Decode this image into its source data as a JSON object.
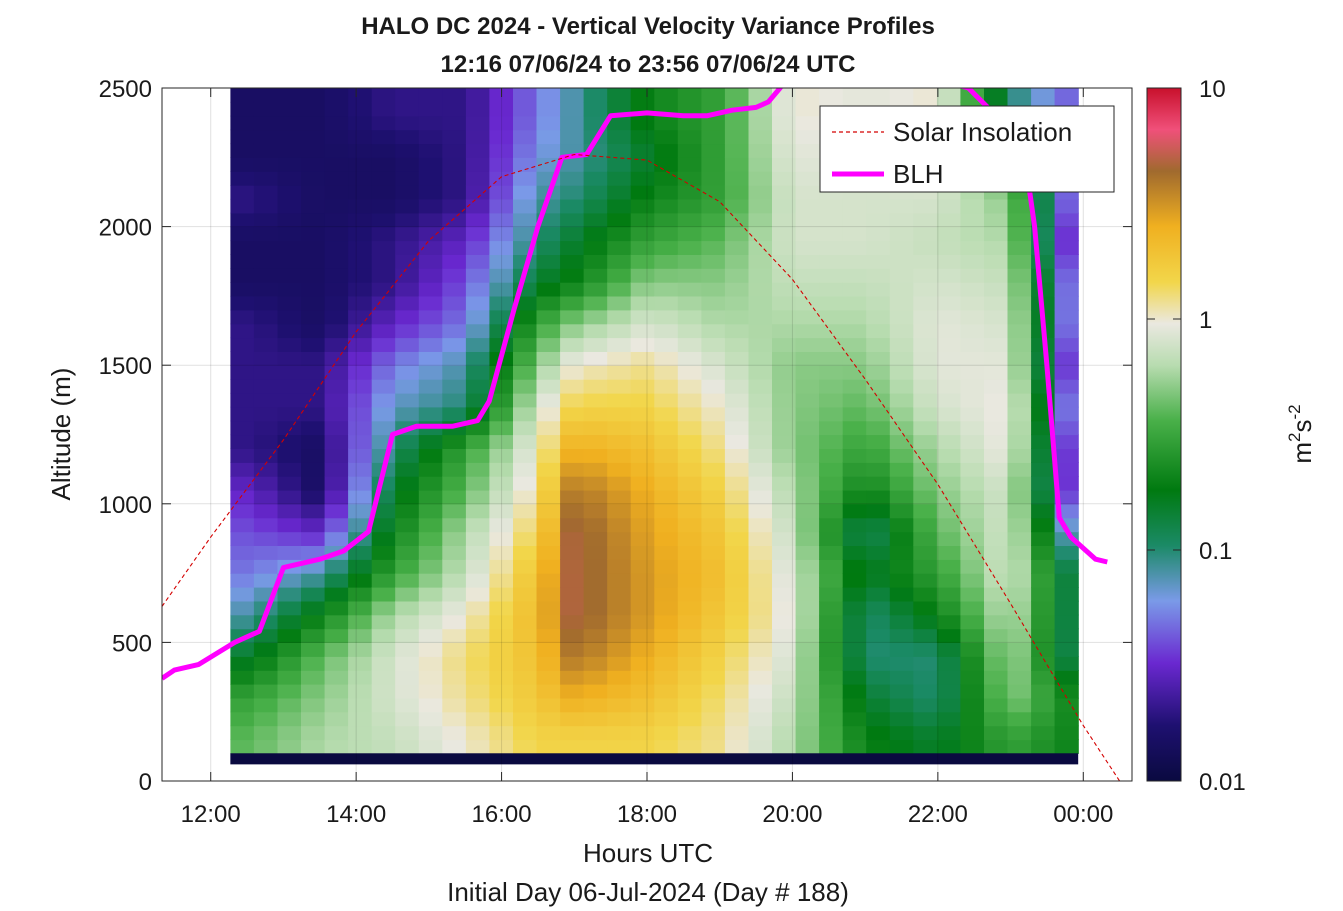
{
  "chart_data": {
    "type": "heatmap",
    "title": "HALO DC 2024 - Vertical Velocity Variance Profiles",
    "subtitle": "12:16 07/06/24 to 23:56 07/06/24  UTC",
    "xlabel": "Hours UTC",
    "xlabel2": "Initial Day 06-Jul-2024 (Day # 188)",
    "ylabel": "Altitude (m)",
    "colorbar_label": "m²s⁻²",
    "colorbar_label_parts": {
      "base": "m",
      "exp1": "2",
      "mid": "s",
      "exp2": "-2"
    },
    "color_scale": "log",
    "clim": [
      0.01,
      10
    ],
    "colorbar_ticks": [
      "10",
      "1",
      "0.1",
      "0.01"
    ],
    "x_ticks": [
      "12:00",
      "14:00",
      "16:00",
      "18:00",
      "20:00",
      "22:00",
      "00:00"
    ],
    "x_tick_hours": [
      12,
      14,
      16,
      18,
      20,
      22,
      24
    ],
    "xlim_hours": [
      11.33,
      24.67
    ],
    "y_ticks": [
      "0",
      "500",
      "1000",
      "1500",
      "2000",
      "2500"
    ],
    "y_tick_values": [
      0,
      500,
      1000,
      1500,
      2000,
      2500
    ],
    "ylim": [
      0,
      2500
    ],
    "grid": true,
    "legend_position": "top-right",
    "data_extent": {
      "hours": [
        12.27,
        23.93
      ],
      "altitude_m": [
        100,
        2500
      ]
    },
    "variance_m2s2_profiles": {
      "altitudes_m": [
        150,
        300,
        450,
        600,
        750,
        900,
        1050,
        1200,
        1350,
        1500,
        1650,
        1800,
        1950,
        2100,
        2250,
        2400
      ],
      "by_hour": [
        {
          "hour": 12.5,
          "values": [
            0.4,
            0.3,
            0.15,
            0.08,
            0.05,
            0.04,
            0.03,
            0.02,
            0.02,
            0.02,
            0.02,
            0.015,
            0.015,
            0.02,
            0.015,
            0.015
          ]
        },
        {
          "hour": 13.5,
          "values": [
            0.6,
            0.5,
            0.4,
            0.2,
            0.08,
            0.03,
            0.015,
            0.015,
            0.02,
            0.02,
            0.015,
            0.015,
            0.015,
            0.015,
            0.015,
            0.015
          ]
        },
        {
          "hour": 14.5,
          "values": [
            0.7,
            0.8,
            0.8,
            0.6,
            0.3,
            0.2,
            0.15,
            0.1,
            0.07,
            0.05,
            0.03,
            0.02,
            0.02,
            0.015,
            0.015,
            0.02
          ]
        },
        {
          "hour": 15.5,
          "values": [
            1.0,
            1.2,
            1.3,
            1.0,
            0.7,
            0.6,
            0.4,
            0.3,
            0.1,
            0.08,
            0.05,
            0.04,
            0.03,
            0.02,
            0.02,
            0.02
          ]
        },
        {
          "hour": 16.5,
          "values": [
            1.5,
            1.8,
            2.0,
            2.2,
            2.0,
            1.5,
            1.2,
            1.0,
            0.8,
            0.5,
            0.3,
            0.15,
            0.1,
            0.08,
            0.06,
            0.05
          ]
        },
        {
          "hour": 17.0,
          "values": [
            1.5,
            2.5,
            4.0,
            5.0,
            5.0,
            5.0,
            4.0,
            2.5,
            1.5,
            1.0,
            0.5,
            0.2,
            0.15,
            0.1,
            0.08,
            0.08
          ]
        },
        {
          "hour": 18.0,
          "values": [
            1.5,
            2.0,
            2.5,
            3.0,
            3.0,
            2.8,
            2.5,
            2.0,
            1.5,
            1.2,
            0.8,
            0.5,
            0.3,
            0.2,
            0.15,
            0.2
          ]
        },
        {
          "hour": 19.0,
          "values": [
            1.2,
            1.3,
            1.5,
            1.8,
            2.0,
            1.8,
            1.5,
            1.2,
            1.0,
            0.8,
            0.6,
            0.5,
            0.4,
            0.3,
            0.3,
            0.3
          ]
        },
        {
          "hour": 20.0,
          "values": [
            0.6,
            0.7,
            0.8,
            0.9,
            0.8,
            0.7,
            0.6,
            0.5,
            0.5,
            0.5,
            0.6,
            0.7,
            0.8,
            0.8,
            0.9,
            1.0
          ]
        },
        {
          "hour": 21.0,
          "values": [
            0.2,
            0.15,
            0.1,
            0.1,
            0.15,
            0.1,
            0.2,
            0.3,
            0.4,
            0.5,
            0.6,
            0.7,
            0.8,
            0.8,
            0.8,
            0.9
          ]
        },
        {
          "hour": 22.0,
          "values": [
            0.15,
            0.1,
            0.1,
            0.2,
            0.3,
            0.4,
            0.5,
            0.6,
            0.8,
            0.9,
            0.9,
            0.8,
            0.7,
            0.8,
            0.9,
            1.0
          ]
        },
        {
          "hour": 23.0,
          "values": [
            0.3,
            0.5,
            0.6,
            0.7,
            0.8,
            0.8,
            0.8,
            1.0,
            1.0,
            0.9,
            0.8,
            0.7,
            0.6,
            0.5,
            0.3,
            0.1
          ]
        },
        {
          "hour": 23.9,
          "values": [
            0.2,
            0.2,
            0.1,
            0.1,
            0.1,
            0.05,
            0.02,
            0.02,
            0.03,
            0.02,
            0.03,
            0.03,
            0.02,
            0.03,
            0.03,
            0.04
          ]
        }
      ]
    },
    "series": [
      {
        "name": "BLH",
        "color": "#ff00ff",
        "style": "solid",
        "hours": [
          11.33,
          11.5,
          11.83,
          12.33,
          12.67,
          13.0,
          13.5,
          13.83,
          14.17,
          14.5,
          14.83,
          15.33,
          15.67,
          15.83,
          16.17,
          16.5,
          16.83,
          17.17,
          17.5,
          18.0,
          18.5,
          18.83,
          19.17,
          19.5,
          19.67,
          19.83,
          20.0,
          20.17,
          22.42,
          22.8,
          23.17,
          23.33,
          23.5,
          23.67,
          23.83,
          24.17,
          24.33
        ],
        "altitude_m": [
          370,
          400,
          420,
          500,
          540,
          770,
          800,
          830,
          900,
          1250,
          1280,
          1280,
          1300,
          1370,
          1700,
          2000,
          2250,
          2260,
          2400,
          2410,
          2400,
          2400,
          2420,
          2430,
          2450,
          2500,
          2560,
          2660,
          2500,
          2400,
          2300,
          2000,
          1500,
          950,
          880,
          800,
          790
        ]
      },
      {
        "name": "Solar Insolation",
        "color": "#d40000",
        "style": "dashed",
        "hours": [
          11.33,
          12.0,
          13.0,
          14.0,
          15.0,
          16.0,
          17.0,
          18.0,
          19.0,
          20.0,
          21.0,
          22.0,
          23.0,
          24.0,
          24.5
        ],
        "altitude_m": [
          630,
          880,
          1230,
          1620,
          1950,
          2180,
          2260,
          2240,
          2090,
          1810,
          1450,
          1070,
          640,
          200,
          0
        ]
      }
    ]
  }
}
